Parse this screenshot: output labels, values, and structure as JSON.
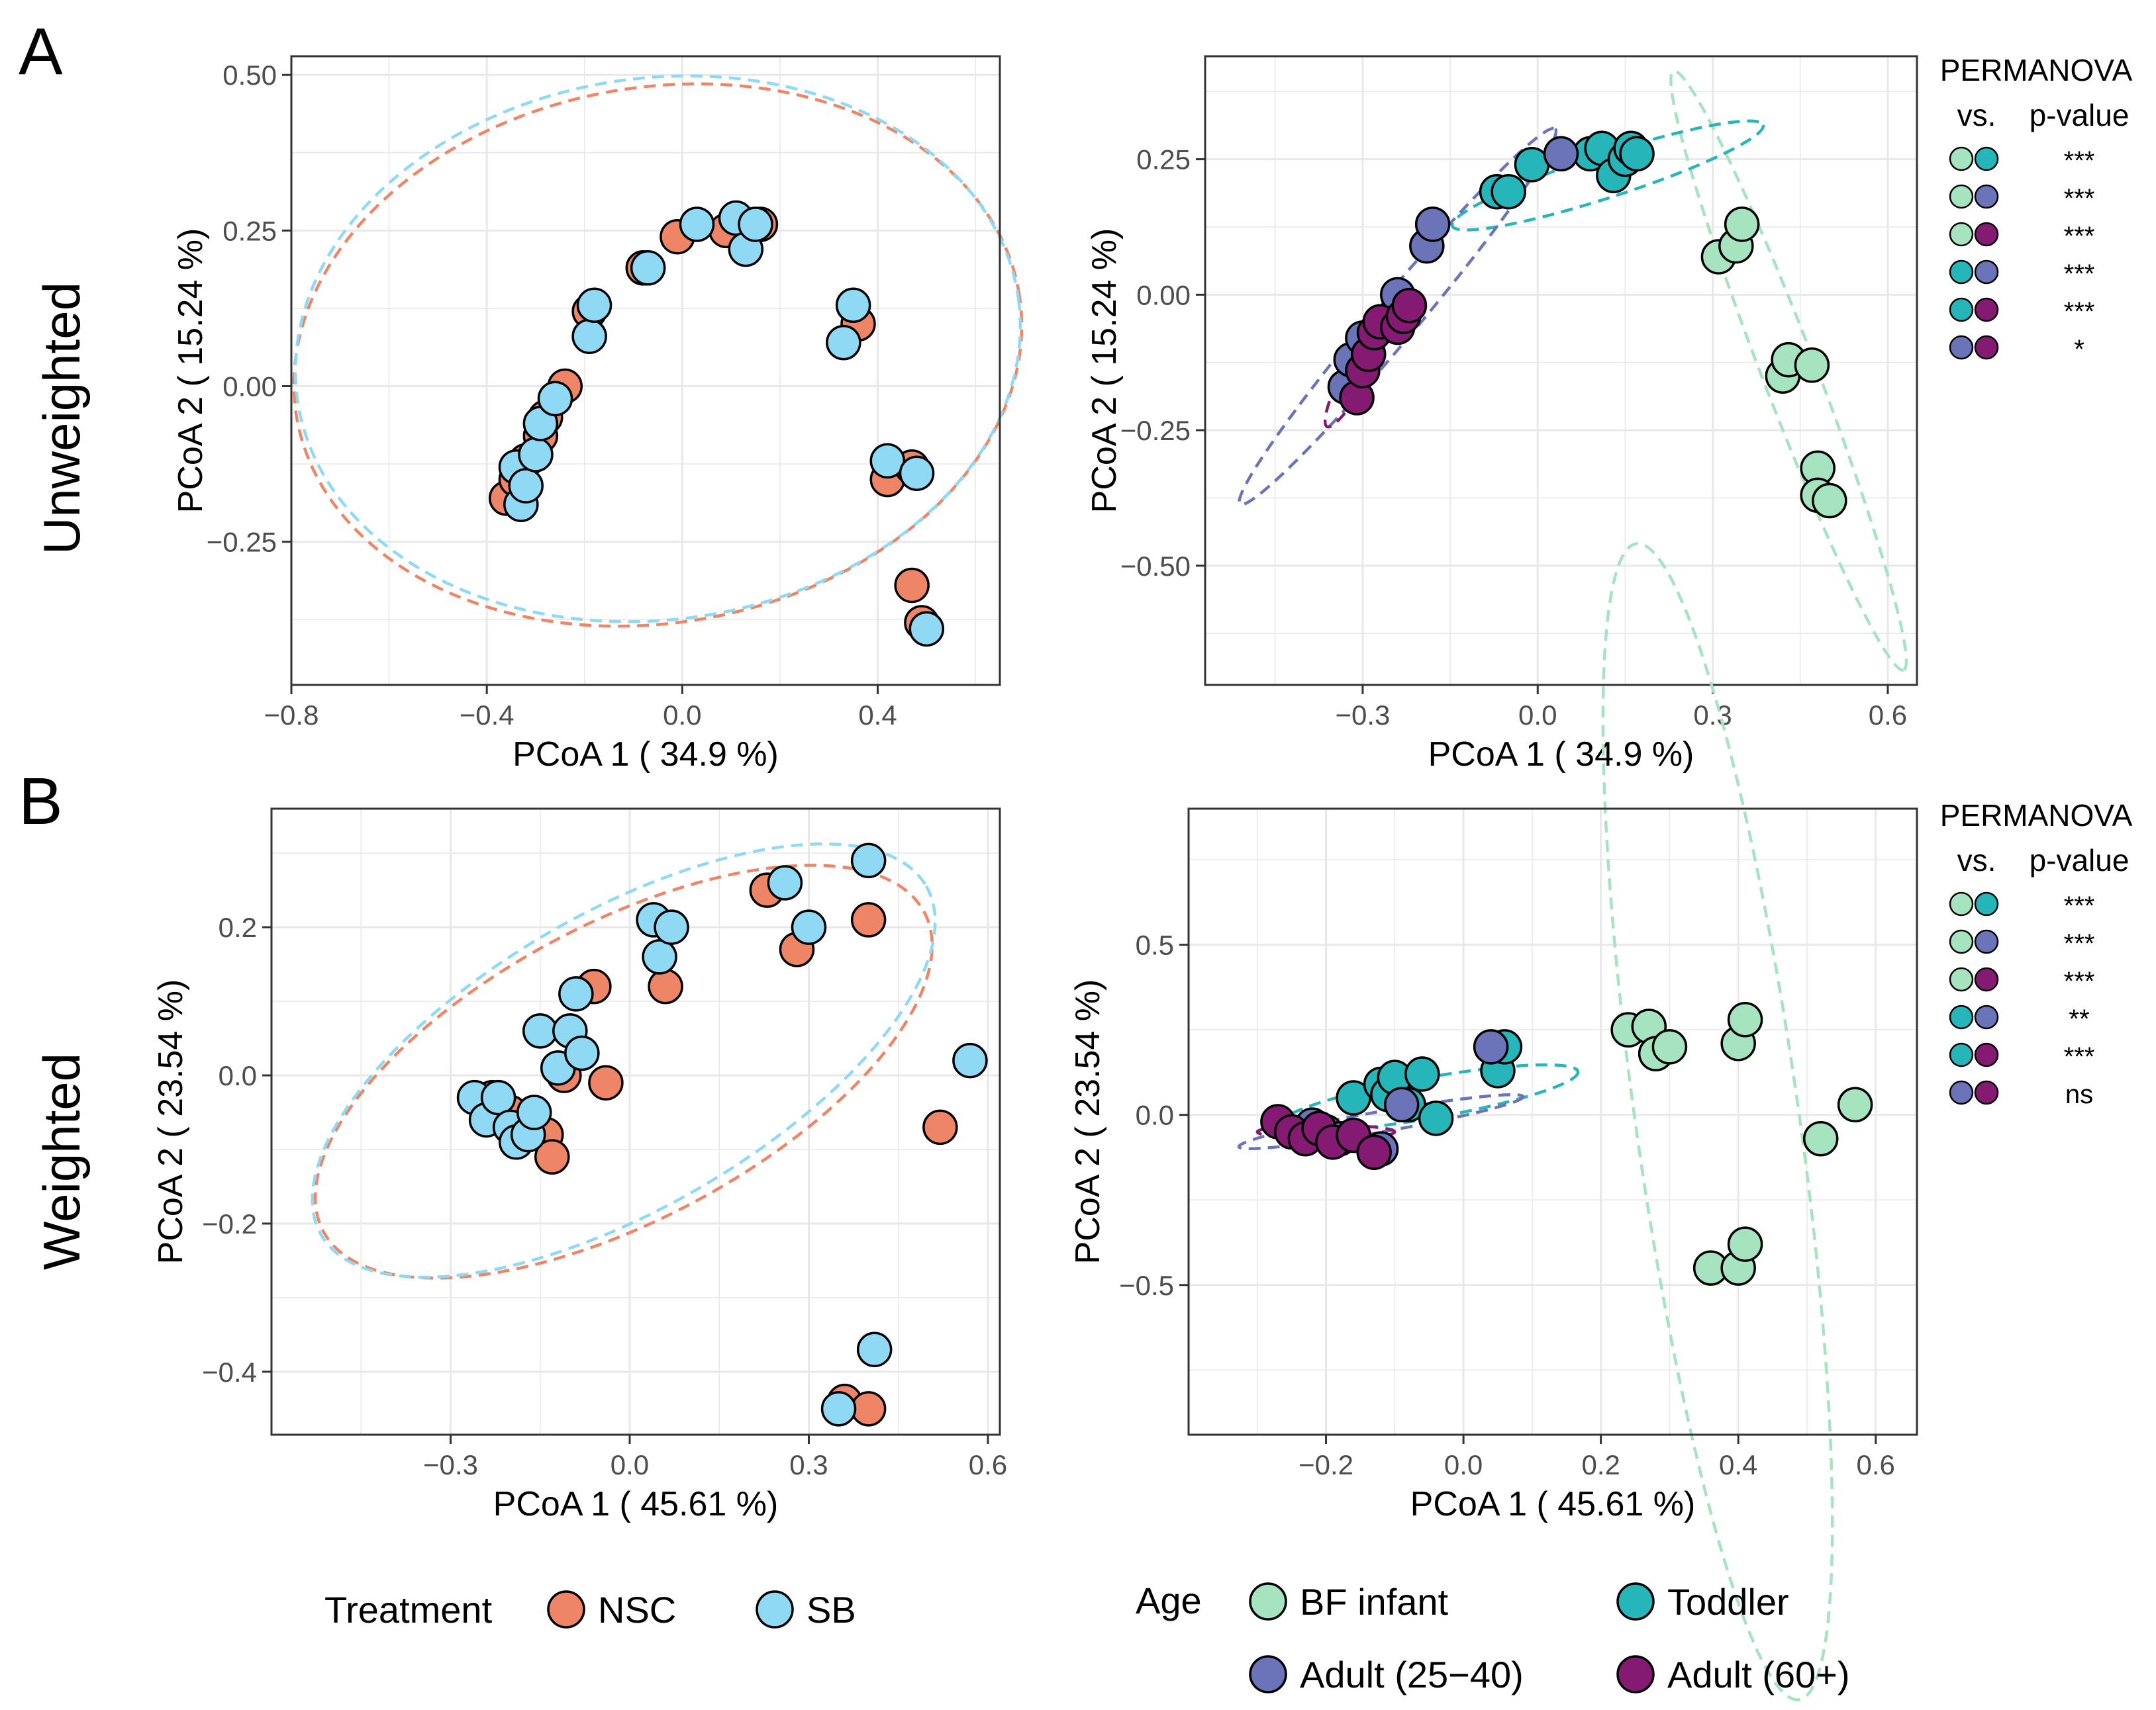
{
  "panel_labels": [
    "A",
    "B"
  ],
  "row_labels": [
    "Unweighted",
    "Weighted"
  ],
  "colors": {
    "NSC": "#ee8566",
    "SB": "#8fd9f5",
    "BF infant": "#a6e3bf",
    "Toddler": "#26b5b8",
    "Adult (25−40)": "#6b74b8",
    "Adult (60+)": "#841a72"
  },
  "permanova": {
    "title": "PERMANOVA",
    "vs_label": "vs.",
    "p_label": "p-value",
    "rows_unweighted": [
      {
        "a": "BF infant",
        "b": "Toddler",
        "p": "***"
      },
      {
        "a": "BF infant",
        "b": "Adult (25−40)",
        "p": "***"
      },
      {
        "a": "BF infant",
        "b": "Adult (60+)",
        "p": "***"
      },
      {
        "a": "Toddler",
        "b": "Adult (25−40)",
        "p": "***"
      },
      {
        "a": "Toddler",
        "b": "Adult (60+)",
        "p": "***"
      },
      {
        "a": "Adult (25−40)",
        "b": "Adult (60+)",
        "p": "*"
      }
    ],
    "rows_weighted": [
      {
        "a": "BF infant",
        "b": "Toddler",
        "p": "***"
      },
      {
        "a": "BF infant",
        "b": "Adult (25−40)",
        "p": "***"
      },
      {
        "a": "BF infant",
        "b": "Adult (60+)",
        "p": "***"
      },
      {
        "a": "Toddler",
        "b": "Adult (25−40)",
        "p": "**"
      },
      {
        "a": "Toddler",
        "b": "Adult (60+)",
        "p": "***"
      },
      {
        "a": "Adult (25−40)",
        "b": "Adult (60+)",
        "p": "ns"
      }
    ]
  },
  "legends": {
    "treatment": {
      "title": "Treatment",
      "items": [
        "NSC",
        "SB"
      ]
    },
    "age": {
      "title": "Age",
      "items": [
        "BF infant",
        "Toddler",
        "Adult (25−40)",
        "Adult (60+)"
      ]
    }
  },
  "chart_data": [
    {
      "id": "unweighted-treatment",
      "type": "scatter",
      "xlabel": "PCoA 1 ( 34.9 %)",
      "ylabel": "PCoA 2 ( 15.24 %)",
      "xlim": [
        -0.8,
        0.65
      ],
      "ylim": [
        -0.48,
        0.53
      ],
      "xticks": [
        -0.8,
        -0.4,
        0.0,
        0.4
      ],
      "xtick_labels": [
        "−0.8",
        "−0.4",
        "0.0",
        "0.4"
      ],
      "yticks": [
        -0.25,
        0.0,
        0.25,
        0.5
      ],
      "ytick_labels": [
        "−0.25",
        "0.00",
        "0.25",
        "0.50"
      ],
      "ellipses": [
        {
          "group": "NSC",
          "cx": -0.05,
          "cy": 0.05,
          "rx": 0.75,
          "ry": 0.43,
          "angle": 10
        },
        {
          "group": "SB",
          "cx": -0.05,
          "cy": 0.06,
          "rx": 0.745,
          "ry": 0.435,
          "angle": 8
        }
      ],
      "series": [
        {
          "name": "NSC",
          "x": [
            -0.36,
            -0.34,
            -0.32,
            -0.29,
            -0.28,
            -0.24,
            -0.19,
            -0.08,
            -0.01,
            0.09,
            0.16,
            0.36,
            0.42,
            0.47,
            0.47,
            0.49
          ],
          "y": [
            -0.18,
            -0.15,
            -0.12,
            -0.08,
            -0.05,
            0.0,
            0.12,
            0.19,
            0.24,
            0.25,
            0.26,
            0.1,
            -0.15,
            -0.13,
            -0.32,
            -0.38
          ]
        },
        {
          "name": "SB",
          "x": [
            -0.33,
            -0.34,
            -0.32,
            -0.3,
            -0.29,
            -0.26,
            -0.19,
            -0.18,
            -0.07,
            0.03,
            0.11,
            0.13,
            0.15,
            0.33,
            0.35,
            0.42,
            0.48,
            0.5
          ],
          "y": [
            -0.19,
            -0.13,
            -0.16,
            -0.11,
            -0.06,
            -0.02,
            0.08,
            0.13,
            0.19,
            0.26,
            0.27,
            0.22,
            0.26,
            0.07,
            0.13,
            -0.12,
            -0.14,
            -0.39
          ]
        }
      ]
    },
    {
      "id": "unweighted-age",
      "type": "scatter",
      "xlabel": "PCoA 1 ( 34.9 %)",
      "ylabel": "PCoA 2 ( 15.24 %)",
      "xlim": [
        -0.57,
        0.65
      ],
      "ylim": [
        -0.72,
        0.44
      ],
      "xticks": [
        -0.3,
        0.0,
        0.3,
        0.6
      ],
      "xtick_labels": [
        "−0.3",
        "0.0",
        "0.3",
        "0.6"
      ],
      "yticks": [
        -0.5,
        -0.25,
        0.0,
        0.25
      ],
      "ytick_labels": [
        "−0.50",
        "−0.25",
        "0.00",
        "0.25"
      ],
      "ellipses": [
        {
          "group": "BF infant",
          "cx": 0.43,
          "cy": -0.14,
          "rx": 0.55,
          "ry": 0.05,
          "angle": -69
        },
        {
          "group": "Toddler",
          "cx": 0.12,
          "cy": 0.22,
          "rx": 0.28,
          "ry": 0.04,
          "angle": 18
        },
        {
          "group": "Adult (25−40)",
          "cx": -0.24,
          "cy": -0.04,
          "rx": 0.42,
          "ry": 0.04,
          "angle": 50
        },
        {
          "group": "Adult (60+)",
          "cx": -0.3,
          "cy": -0.12,
          "rx": 0.13,
          "ry": 0.025,
          "angle": 62
        }
      ],
      "series": [
        {
          "name": "BF infant",
          "x": [
            0.31,
            0.34,
            0.35,
            0.42,
            0.43,
            0.47,
            0.48,
            0.48,
            0.5
          ],
          "y": [
            0.07,
            0.09,
            0.13,
            -0.15,
            -0.12,
            -0.13,
            -0.32,
            -0.37,
            -0.38
          ]
        },
        {
          "name": "Toddler",
          "x": [
            -0.07,
            -0.05,
            -0.01,
            0.09,
            0.11,
            0.13,
            0.15,
            0.16,
            0.17
          ],
          "y": [
            0.19,
            0.19,
            0.24,
            0.26,
            0.27,
            0.22,
            0.25,
            0.27,
            0.26
          ]
        },
        {
          "name": "Adult (25−40)",
          "x": [
            -0.33,
            -0.32,
            -0.3,
            -0.24,
            -0.19,
            -0.18,
            0.04
          ],
          "y": [
            -0.17,
            -0.12,
            -0.08,
            0.0,
            0.09,
            0.13,
            0.26
          ]
        },
        {
          "name": "Adult (60+)",
          "x": [
            -0.31,
            -0.3,
            -0.29,
            -0.28,
            -0.27,
            -0.24,
            -0.23,
            -0.22
          ],
          "y": [
            -0.19,
            -0.14,
            -0.11,
            -0.07,
            -0.05,
            -0.06,
            -0.04,
            -0.02
          ]
        }
      ]
    },
    {
      "id": "weighted-treatment",
      "type": "scatter",
      "xlabel": "PCoA 1 ( 45.61 %)",
      "ylabel": "PCoA 2 ( 23.54 %)",
      "xlim": [
        -0.6,
        0.62
      ],
      "ylim": [
        -0.485,
        0.36
      ],
      "xticks": [
        -0.3,
        0.0,
        0.3,
        0.6
      ],
      "xtick_labels": [
        "−0.3",
        "0.0",
        "0.3",
        "0.6"
      ],
      "yticks": [
        -0.4,
        -0.2,
        0.0,
        0.2
      ],
      "ytick_labels": [
        "−0.4",
        "−0.2",
        "0.0",
        "0.2"
      ],
      "ellipses": [
        {
          "group": "NSC",
          "cx": -0.01,
          "cy": 0.005,
          "rx": 0.57,
          "ry": 0.2,
          "angle": 28
        },
        {
          "group": "SB",
          "cx": -0.01,
          "cy": 0.02,
          "rx": 0.585,
          "ry": 0.2,
          "angle": 30
        }
      ],
      "series": [
        {
          "name": "NSC",
          "x": [
            -0.23,
            -0.2,
            -0.17,
            -0.14,
            -0.13,
            -0.11,
            -0.06,
            -0.04,
            0.06,
            0.23,
            0.28,
            0.4,
            0.52,
            0.36,
            0.4
          ],
          "y": [
            -0.03,
            -0.05,
            -0.07,
            -0.08,
            -0.11,
            0.0,
            0.12,
            -0.01,
            0.12,
            0.25,
            0.17,
            0.21,
            -0.07,
            -0.44,
            -0.45
          ]
        },
        {
          "name": "SB",
          "x": [
            -0.26,
            -0.24,
            -0.22,
            -0.2,
            -0.19,
            -0.17,
            -0.16,
            -0.15,
            -0.12,
            -0.1,
            -0.09,
            -0.08,
            0.04,
            0.05,
            0.07,
            0.26,
            0.3,
            0.4,
            0.57,
            0.41,
            0.35
          ],
          "y": [
            -0.03,
            -0.06,
            -0.03,
            -0.07,
            -0.09,
            -0.08,
            -0.05,
            0.06,
            0.01,
            0.06,
            0.11,
            0.03,
            0.21,
            0.16,
            0.2,
            0.26,
            0.2,
            0.29,
            0.02,
            -0.37,
            -0.45
          ]
        }
      ]
    },
    {
      "id": "weighted-age",
      "type": "scatter",
      "xlabel": "PCoA 1 ( 45.61 %)",
      "ylabel": "PCoA 2 ( 23.54 %)",
      "xlim": [
        -0.4,
        0.66
      ],
      "ylim": [
        -0.94,
        0.9
      ],
      "xticks": [
        -0.2,
        0.0,
        0.2,
        0.4,
        0.6
      ],
      "xtick_labels": [
        "−0.2",
        "0.0",
        "0.2",
        "0.4",
        "0.6"
      ],
      "yticks": [
        -0.5,
        0.0,
        0.5
      ],
      "ytick_labels": [
        "−0.5",
        "0.0",
        "0.5"
      ],
      "ellipses": [
        {
          "group": "BF infant",
          "cx": 0.37,
          "cy": -0.02,
          "rx": 0.85,
          "ry": 0.24,
          "angle": -82
        },
        {
          "group": "Toddler",
          "cx": -0.05,
          "cy": 0.05,
          "rx": 0.22,
          "ry": 0.06,
          "angle": 10
        },
        {
          "group": "Adult (25−40)",
          "cx": -0.12,
          "cy": -0.02,
          "rx": 0.21,
          "ry": 0.03,
          "angle": 10
        },
        {
          "group": "Adult (60+)",
          "cx": -0.2,
          "cy": -0.05,
          "rx": 0.1,
          "ry": 0.02,
          "angle": 0
        }
      ],
      "series": [
        {
          "name": "BF infant",
          "x": [
            0.24,
            0.27,
            0.28,
            0.3,
            0.4,
            0.41,
            0.52,
            0.57,
            0.36,
            0.4,
            0.41
          ],
          "y": [
            0.25,
            0.26,
            0.18,
            0.2,
            0.21,
            0.28,
            -0.07,
            0.03,
            -0.45,
            -0.45,
            -0.38
          ]
        },
        {
          "name": "Toddler",
          "x": [
            -0.16,
            -0.12,
            -0.11,
            -0.1,
            -0.08,
            -0.06,
            -0.04,
            0.05,
            0.06
          ],
          "y": [
            0.05,
            0.09,
            0.06,
            0.11,
            0.03,
            0.12,
            -0.01,
            0.13,
            0.2
          ]
        },
        {
          "name": "Adult (25−40)",
          "x": [
            -0.22,
            -0.2,
            -0.18,
            -0.12,
            -0.09,
            0.04
          ],
          "y": [
            -0.03,
            -0.05,
            -0.07,
            -0.1,
            0.03,
            0.2
          ]
        },
        {
          "name": "Adult (60+)",
          "x": [
            -0.27,
            -0.25,
            -0.23,
            -0.21,
            -0.19,
            -0.16,
            -0.13
          ],
          "y": [
            -0.02,
            -0.05,
            -0.07,
            -0.04,
            -0.08,
            -0.06,
            -0.11
          ]
        }
      ]
    }
  ]
}
